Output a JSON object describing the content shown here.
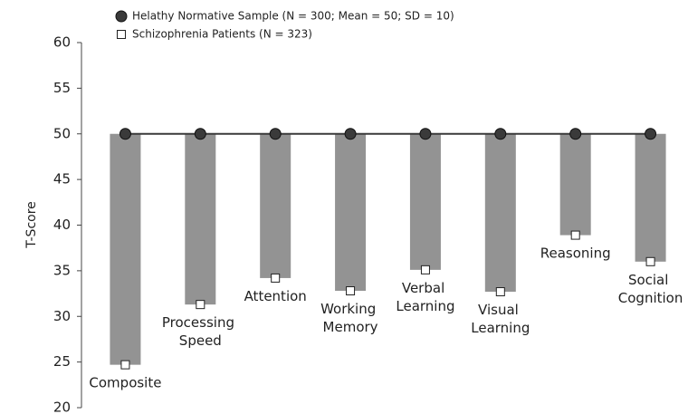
{
  "chart_data": {
    "type": "bar",
    "y_label": "T-Score",
    "categories": [
      "Composite",
      "Processing Speed",
      "Attention",
      "Working Memory",
      "Verbal Learning",
      "Visual Learning",
      "Reasoning",
      "Social Cognition"
    ],
    "series": [
      {
        "name": "Helathy Normative Sample (N = 300; Mean = 50; SD = 10)",
        "color": "#3a3a3a",
        "values": [
          50,
          50,
          50,
          50,
          50,
          50,
          50,
          50
        ]
      },
      {
        "name": "Schizophrenia Patients (N = 323)",
        "color": "#ffffff",
        "values": [
          24.7,
          31.3,
          34.2,
          32.8,
          35.1,
          32.7,
          38.9,
          36.0
        ]
      }
    ],
    "bar_color": "#939393",
    "ylim": [
      20,
      60
    ],
    "yticks": [
      20,
      25,
      30,
      35,
      40,
      45,
      50,
      55,
      60
    ]
  }
}
